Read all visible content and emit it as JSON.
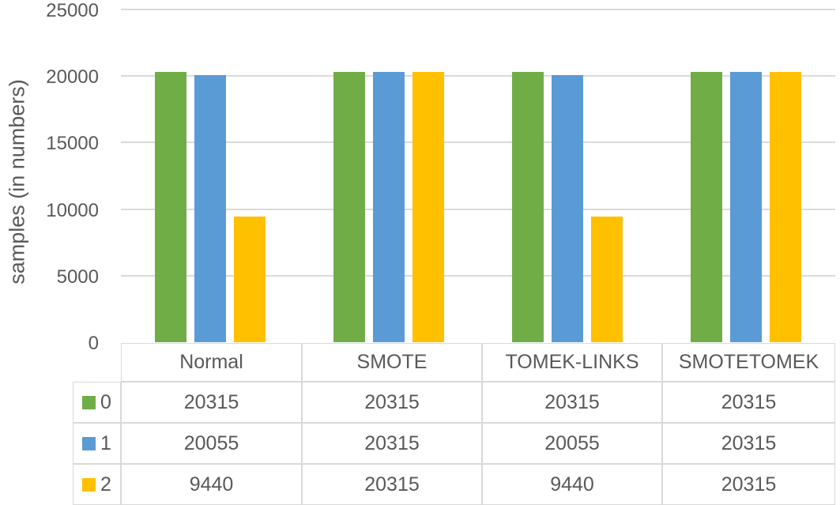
{
  "chart_data": {
    "type": "bar",
    "title": "",
    "xlabel": "",
    "ylabel": "samples (in numbers)",
    "ylim": [
      0,
      25000
    ],
    "yticks": [
      0,
      5000,
      10000,
      15000,
      20000,
      25000
    ],
    "grid": true,
    "legend_position": "table-left",
    "categories": [
      "Normal",
      "SMOTE",
      "TOMEK-LINKS",
      "SMOTETOMEK"
    ],
    "series": [
      {
        "name": "0",
        "color": "#70AD47",
        "values": [
          20315,
          20315,
          20315,
          20315
        ]
      },
      {
        "name": "1",
        "color": "#5B9BD5",
        "values": [
          20055,
          20315,
          20055,
          20315
        ]
      },
      {
        "name": "2",
        "color": "#FFC000",
        "values": [
          9440,
          20315,
          9440,
          20315
        ]
      }
    ]
  },
  "colors": {
    "series_0": "#70AD47",
    "series_1": "#5B9BD5",
    "series_2": "#FFC000",
    "gridline": "#DADADA",
    "table_border": "#D9D9D9",
    "text": "#595959",
    "background": "#FFFFFF"
  }
}
